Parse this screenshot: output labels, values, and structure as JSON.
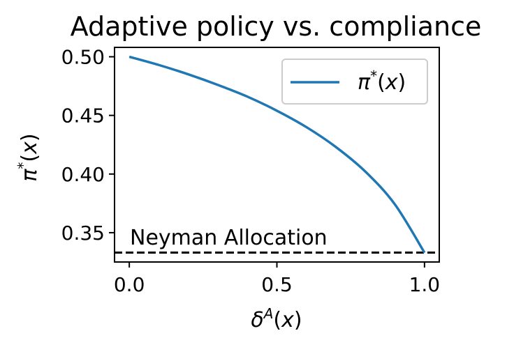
{
  "chart_data": {
    "type": "line",
    "title": "Adaptive policy vs. compliance",
    "xlabel": "δ^A(x)",
    "ylabel": "π*(x)",
    "xlim": [
      -0.05,
      1.05
    ],
    "ylim": [
      0.325,
      0.508
    ],
    "xticks": [
      {
        "value": 0.0,
        "label": "0.0"
      },
      {
        "value": 0.5,
        "label": "0.5"
      },
      {
        "value": 1.0,
        "label": "1.0"
      }
    ],
    "yticks": [
      {
        "value": 0.35,
        "label": "0.35"
      },
      {
        "value": 0.4,
        "label": "0.40"
      },
      {
        "value": 0.45,
        "label": "0.45"
      },
      {
        "value": 0.5,
        "label": "0.50"
      }
    ],
    "grid": false,
    "legend": {
      "position": "top-right",
      "entries": [
        "π*(x)"
      ]
    },
    "series": [
      {
        "name": "π*(x)",
        "color": "#1f77b4",
        "x": [
          0.0,
          0.1,
          0.2,
          0.3,
          0.4,
          0.5,
          0.6,
          0.7,
          0.8,
          0.9,
          1.0
        ],
        "y": [
          0.5,
          0.493,
          0.485,
          0.476,
          0.466,
          0.454,
          0.44,
          0.423,
          0.402,
          0.374,
          0.333
        ]
      }
    ],
    "reference_lines": [
      {
        "y": 0.333,
        "style": "dashed",
        "color": "#000000",
        "label": "Neyman Allocation"
      }
    ]
  }
}
